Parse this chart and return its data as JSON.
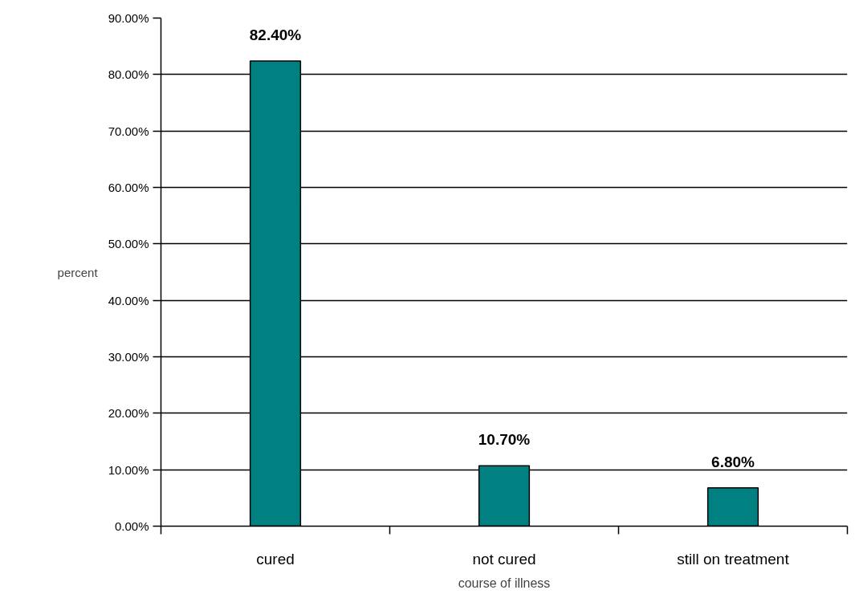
{
  "chart_data": {
    "type": "bar",
    "xlabel": "course of illness",
    "ylabel": "percent",
    "categories": [
      "cured",
      "not cured",
      "still on treatment"
    ],
    "values": [
      82.4,
      10.7,
      6.8
    ],
    "value_labels": [
      "82.40%",
      "10.70%",
      "6.80%"
    ],
    "color": "#008080",
    "ylim": [
      0,
      90
    ],
    "yticks": [
      {
        "value": 0,
        "label": "0.00%"
      },
      {
        "value": 10,
        "label": "10.00%"
      },
      {
        "value": 20,
        "label": "20.00%"
      },
      {
        "value": 30,
        "label": "30.00%"
      },
      {
        "value": 40,
        "label": "40.00%"
      },
      {
        "value": 50,
        "label": "50.00%"
      },
      {
        "value": 60,
        "label": "60.00%"
      },
      {
        "value": 70,
        "label": "70.00%"
      },
      {
        "value": 80,
        "label": "80.00%"
      },
      {
        "value": 90,
        "label": "90.00%"
      }
    ],
    "grid": "y"
  }
}
